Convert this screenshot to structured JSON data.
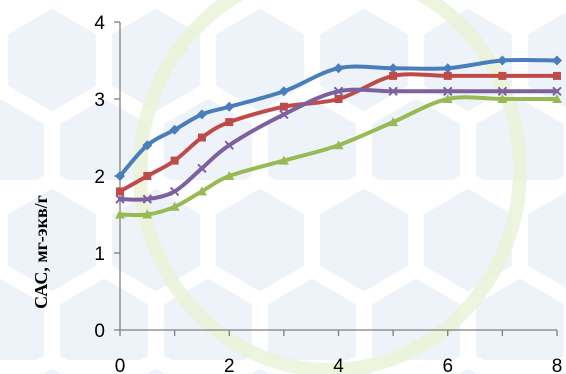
{
  "chart_data": {
    "type": "line",
    "ylabel": "САС, мг-экв/г",
    "xlabel": "",
    "xlim": [
      0,
      8
    ],
    "ylim": [
      0,
      4
    ],
    "x_ticks": [
      0,
      2,
      4,
      6,
      8
    ],
    "y_ticks": [
      0,
      1,
      2,
      3,
      4
    ],
    "grid": false,
    "legend": "none",
    "series": [
      {
        "color": "#4a7ebb",
        "marker": "diamond",
        "x": [
          0,
          0.5,
          1,
          1.5,
          2,
          3,
          4,
          5,
          6,
          7,
          8
        ],
        "y": [
          2.0,
          2.4,
          2.6,
          2.8,
          2.9,
          3.1,
          3.4,
          3.4,
          3.4,
          3.5,
          3.5
        ]
      },
      {
        "color": "#be4b48",
        "marker": "square",
        "x": [
          0,
          0.5,
          1,
          1.5,
          2,
          3,
          4,
          5,
          6,
          7,
          8
        ],
        "y": [
          1.8,
          2.0,
          2.2,
          2.5,
          2.7,
          2.9,
          3.0,
          3.3,
          3.3,
          3.3,
          3.3
        ]
      },
      {
        "color": "#7d60a0",
        "marker": "x",
        "x": [
          0,
          0.5,
          1,
          1.5,
          2,
          3,
          4,
          5,
          6,
          7,
          8
        ],
        "y": [
          1.7,
          1.7,
          1.8,
          2.1,
          2.4,
          2.8,
          3.1,
          3.1,
          3.1,
          3.1,
          3.1
        ]
      },
      {
        "color": "#98b954",
        "marker": "triangle",
        "x": [
          0,
          0.5,
          1,
          1.5,
          2,
          3,
          4,
          5,
          6,
          7,
          8
        ],
        "y": [
          1.5,
          1.5,
          1.6,
          1.8,
          2.0,
          2.2,
          2.4,
          2.7,
          3.0,
          3.0,
          3.0
        ]
      }
    ]
  }
}
